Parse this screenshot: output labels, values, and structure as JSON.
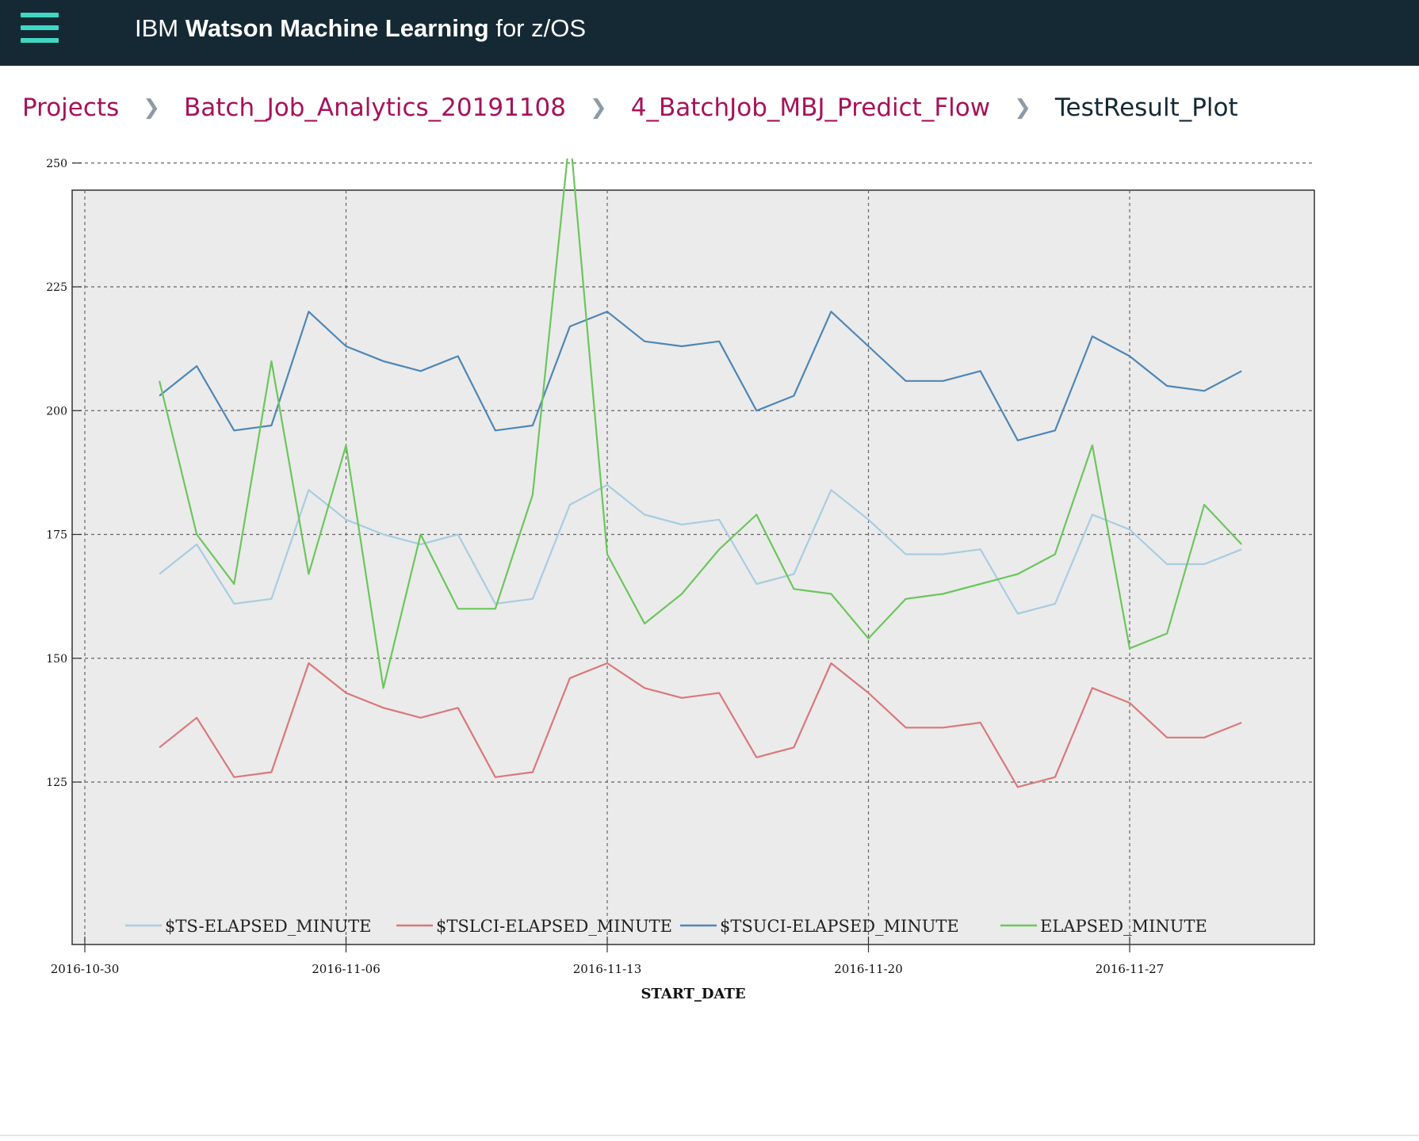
{
  "header": {
    "brand_prefix": "IBM",
    "brand_name": "Watson Machine Learning",
    "brand_suffix": "for z/OS",
    "accent_color": "#41d6c3",
    "background_color": "#152935"
  },
  "breadcrumb": {
    "items": [
      {
        "label": "Projects"
      },
      {
        "label": "Batch_Job_Analytics_20191108"
      },
      {
        "label": "4_BatchJob_MBJ_Predict_Flow"
      },
      {
        "label": "TestResult_Plot"
      }
    ],
    "link_color": "#a6125a",
    "current_color": "#152935"
  },
  "chart_data": {
    "type": "line",
    "title": "",
    "xlabel": "START_DATE",
    "ylabel": "",
    "x_ticks": [
      "2016-10-30",
      "2016-11-06",
      "2016-11-13",
      "2016-11-20",
      "2016-11-27"
    ],
    "y_ticks": [
      125,
      150,
      175,
      200,
      225,
      250
    ],
    "xlim": [
      "2016-10-30",
      "2016-12-03"
    ],
    "ylim": [
      114,
      266
    ],
    "grid": true,
    "legend_position": "bottom",
    "x": [
      "2016-11-01",
      "2016-11-02",
      "2016-11-03",
      "2016-11-04",
      "2016-11-05",
      "2016-11-06",
      "2016-11-07",
      "2016-11-08",
      "2016-11-09",
      "2016-11-10",
      "2016-11-11",
      "2016-11-12",
      "2016-11-13",
      "2016-11-14",
      "2016-11-15",
      "2016-11-16",
      "2016-11-17",
      "2016-11-18",
      "2016-11-19",
      "2016-11-20",
      "2016-11-21",
      "2016-11-22",
      "2016-11-23",
      "2016-11-24",
      "2016-11-25",
      "2016-11-26",
      "2016-11-27",
      "2016-11-28",
      "2016-11-29",
      "2016-11-30"
    ],
    "series": [
      {
        "name": "$TS-ELAPSED_MINUTE",
        "color": "#a8cde1",
        "values": [
          167,
          173,
          161,
          162,
          184,
          178,
          175,
          173,
          175,
          161,
          162,
          181,
          185,
          179,
          177,
          178,
          165,
          167,
          184,
          178,
          171,
          171,
          172,
          159,
          161,
          179,
          176,
          169,
          169,
          172
        ]
      },
      {
        "name": "$TSLCI-ELAPSED_MINUTE",
        "color": "#d9787b",
        "values": [
          132,
          138,
          126,
          127,
          149,
          143,
          140,
          138,
          140,
          126,
          127,
          146,
          149,
          144,
          142,
          143,
          130,
          132,
          149,
          143,
          136,
          136,
          137,
          124,
          126,
          144,
          141,
          134,
          134,
          137
        ]
      },
      {
        "name": "$TSUCI-ELAPSED_MINUTE",
        "color": "#4f86b5",
        "values": [
          203,
          209,
          196,
          197,
          220,
          213,
          210,
          208,
          211,
          196,
          197,
          217,
          220,
          214,
          213,
          214,
          200,
          203,
          220,
          213,
          206,
          206,
          208,
          194,
          196,
          215,
          211,
          205,
          204,
          208
        ]
      },
      {
        "name": "ELAPSED_MINUTE",
        "color": "#6cc65d",
        "values": [
          206,
          175,
          165,
          210,
          167,
          193,
          144,
          175,
          160,
          160,
          183,
          256,
          171,
          157,
          163,
          172,
          179,
          164,
          163,
          154,
          162,
          163,
          165,
          167,
          171,
          193,
          152,
          155,
          181,
          173
        ]
      }
    ]
  }
}
